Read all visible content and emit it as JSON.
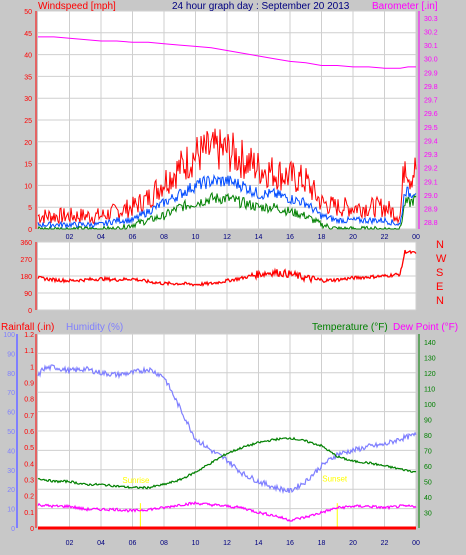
{
  "header": {
    "wind_label": "Windspeed [mph]",
    "title": "24 hour graph day : September 20 2013",
    "baro_label": "Barometer [.in]"
  },
  "lower_header": {
    "rain_label": "Rainfall (.in)",
    "humidity_label": "Humidity (%)",
    "temp_label": "Temperature (°F)",
    "dew_label": "Dew Point (°F)"
  },
  "annotations": {
    "sunrise": "Sunrise",
    "sunset": "Sunset"
  },
  "colors": {
    "background": "#c8c8c8",
    "plot_bg": "#ffffff",
    "grid": "#cfcfcf",
    "wind_gust": "#ff0000",
    "wind_avg": "#004bff",
    "wind_low": "#008000",
    "barometer": "#ff00ff",
    "wind_dir": "#ff0000",
    "rain": "#ff0000",
    "humidity": "#7f7fff",
    "temperature": "#008000",
    "dew_point": "#ff00ff",
    "sun_marker": "#ffff00"
  },
  "chart_data": [
    {
      "type": "line",
      "panel": "wind-barometer",
      "x_ticks": [
        "02",
        "04",
        "06",
        "08",
        "10",
        "12",
        "14",
        "16",
        "18",
        "20",
        "22",
        "00"
      ],
      "x_range": [
        0,
        24
      ],
      "y_left_ticks": [
        0,
        5,
        10,
        15,
        20,
        25,
        30,
        35,
        40,
        45,
        50
      ],
      "y_left_range": [
        0,
        50
      ],
      "y_right_ticks": [
        28.8,
        28.9,
        29.0,
        29.1,
        29.2,
        29.3,
        29.4,
        29.5,
        29.6,
        29.7,
        29.8,
        29.9,
        30.0,
        30.1,
        30.2,
        30.3
      ],
      "y_right_range": [
        28.75,
        30.35
      ],
      "series": [
        {
          "key": "gust",
          "axis": "left",
          "x": [
            0,
            1,
            2,
            3,
            4,
            5,
            6,
            7,
            8,
            9,
            10,
            11,
            12,
            13,
            14,
            15,
            16,
            17,
            18,
            19,
            20,
            21,
            22,
            23,
            23.3,
            23.6,
            24
          ],
          "y": [
            3,
            3,
            3,
            3,
            3,
            4,
            5,
            7,
            11,
            14,
            17,
            18,
            18,
            16,
            14,
            13,
            12,
            11,
            6,
            5,
            5,
            5,
            5,
            3,
            17,
            12,
            14
          ]
        },
        {
          "key": "avg",
          "axis": "left",
          "x": [
            0,
            1,
            2,
            3,
            4,
            5,
            6,
            7,
            8,
            9,
            10,
            11,
            12,
            13,
            14,
            15,
            16,
            17,
            18,
            19,
            20,
            21,
            22,
            23,
            23.3,
            23.6,
            24
          ],
          "y": [
            1,
            1,
            1,
            1,
            1,
            2,
            2,
            4,
            6,
            8,
            10,
            11,
            11,
            10,
            8,
            8,
            7,
            6,
            3,
            2,
            2,
            2,
            2,
            1,
            9,
            8,
            9
          ]
        },
        {
          "key": "low",
          "axis": "left",
          "x": [
            0,
            1,
            2,
            3,
            4,
            5,
            6,
            7,
            8,
            9,
            10,
            11,
            12,
            13,
            14,
            15,
            16,
            17,
            18,
            19,
            20,
            21,
            22,
            23,
            23.3,
            23.6,
            24
          ],
          "y": [
            0,
            0,
            0,
            0,
            0,
            0,
            1,
            2,
            3,
            5,
            6,
            7,
            7,
            6,
            5,
            5,
            4,
            3,
            1,
            0,
            0,
            0,
            0,
            0,
            6,
            6,
            7
          ]
        },
        {
          "key": "barometer",
          "axis": "right",
          "x": [
            0,
            1,
            2,
            3,
            4,
            5,
            6,
            7,
            8,
            9,
            10,
            11,
            12,
            13,
            14,
            15,
            16,
            17,
            18,
            19,
            20,
            21,
            22,
            23,
            23.5,
            24
          ],
          "y": [
            30.16,
            30.16,
            30.15,
            30.14,
            30.13,
            30.13,
            30.12,
            30.12,
            30.11,
            30.1,
            30.09,
            30.08,
            30.06,
            30.04,
            30.02,
            30.0,
            29.98,
            29.97,
            29.95,
            29.95,
            29.94,
            29.94,
            29.93,
            29.93,
            29.94,
            29.94
          ]
        }
      ]
    },
    {
      "type": "line",
      "panel": "wind-direction",
      "x_range": [
        0,
        24
      ],
      "y_ticks": [
        0,
        90,
        180,
        270,
        360
      ],
      "y_range": [
        0,
        360
      ],
      "compass": [
        "N",
        "W",
        "S",
        "E",
        "N"
      ],
      "series": [
        {
          "key": "wind_dir",
          "x": [
            0,
            1,
            2,
            3,
            4,
            5,
            6,
            7,
            8,
            9,
            10,
            11,
            12,
            13,
            14,
            15,
            16,
            17,
            18,
            19,
            20,
            21,
            22,
            23,
            23.3,
            23.6,
            24
          ],
          "y": [
            170,
            160,
            155,
            160,
            165,
            160,
            165,
            150,
            140,
            140,
            135,
            140,
            155,
            170,
            190,
            200,
            190,
            170,
            155,
            160,
            170,
            175,
            180,
            190,
            310,
            305,
            300
          ]
        }
      ]
    },
    {
      "type": "line",
      "panel": "rain-humidity-temp",
      "x_ticks": [
        "02",
        "04",
        "06",
        "08",
        "10",
        "12",
        "14",
        "16",
        "18",
        "20",
        "22",
        "00"
      ],
      "x_range": [
        0,
        24
      ],
      "y_left_hum_ticks": [
        0,
        10,
        20,
        30,
        40,
        50,
        60,
        70,
        80,
        90,
        100
      ],
      "y_left_hum_range": [
        0,
        100
      ],
      "y_left_rain_ticks": [
        0,
        0.1,
        0.2,
        0.3,
        0.4,
        0.5,
        0.6,
        0.7,
        0.8,
        0.9,
        1,
        1.1,
        1.2
      ],
      "y_left_rain_range": [
        0,
        1.2
      ],
      "y_right_ticks": [
        30,
        40,
        50,
        60,
        70,
        80,
        90,
        100,
        110,
        120,
        130,
        140
      ],
      "y_right_range": [
        20,
        145
      ],
      "sunrise_hour": 6.5,
      "sunset_hour": 19.0,
      "series": [
        {
          "key": "humidity",
          "axis": "hum",
          "x": [
            0,
            0.3,
            1,
            2,
            3,
            4,
            5,
            6,
            7,
            8,
            9,
            10,
            11,
            12,
            13,
            14,
            15,
            16,
            17,
            18,
            19,
            20,
            21,
            22,
            23,
            24
          ],
          "y": [
            78,
            82,
            83,
            81,
            82,
            80,
            79,
            80,
            82,
            78,
            62,
            46,
            40,
            35,
            28,
            24,
            21,
            19,
            24,
            32,
            38,
            40,
            42,
            43,
            46,
            48
          ]
        },
        {
          "key": "rain",
          "axis": "rain",
          "x": [
            0,
            24
          ],
          "y": [
            0,
            0
          ]
        },
        {
          "key": "temperature",
          "axis": "temp",
          "x": [
            0,
            1,
            2,
            3,
            4,
            5,
            6,
            7,
            8,
            9,
            10,
            11,
            12,
            13,
            14,
            15,
            16,
            17,
            18,
            19,
            20,
            21,
            22,
            23,
            24
          ],
          "y": [
            52,
            50,
            50,
            48,
            48,
            47,
            46,
            46,
            48,
            51,
            56,
            62,
            68,
            72,
            75,
            77,
            78,
            76,
            73,
            66,
            63,
            62,
            60,
            58,
            56
          ]
        },
        {
          "key": "dew_point",
          "axis": "temp",
          "x": [
            0,
            1,
            2,
            3,
            4,
            5,
            6,
            7,
            8,
            9,
            10,
            11,
            12,
            13,
            14,
            15,
            16,
            17,
            18,
            19,
            20,
            21,
            22,
            23,
            24
          ],
          "y": [
            35,
            34,
            34,
            32,
            32,
            32,
            31,
            32,
            33,
            35,
            36,
            35,
            34,
            33,
            30,
            28,
            25,
            27,
            30,
            33,
            34,
            34,
            33,
            34,
            34
          ]
        }
      ]
    }
  ]
}
